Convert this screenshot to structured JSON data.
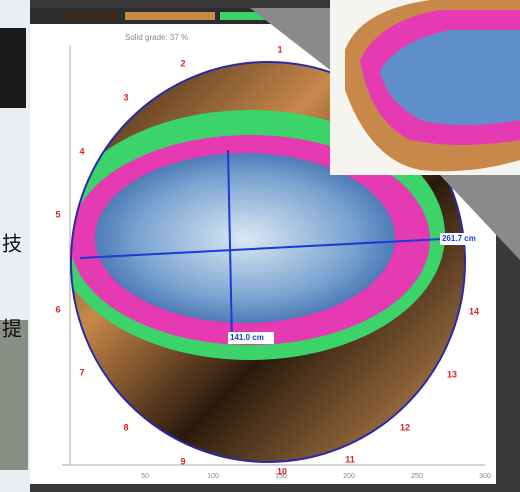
{
  "slide": {
    "fragments": [
      "技",
      "提"
    ]
  },
  "figure": {
    "header": "Solid grade: 37 %",
    "points": [
      "1",
      "2",
      "3",
      "4",
      "5",
      "6",
      "7",
      "8",
      "9",
      "10",
      "11",
      "12",
      "13",
      "14"
    ],
    "measurements": [
      "261.7 cm",
      "141.0 cm"
    ],
    "x_ticks": [
      "50",
      "100",
      "150",
      "200",
      "250",
      "300"
    ]
  }
}
